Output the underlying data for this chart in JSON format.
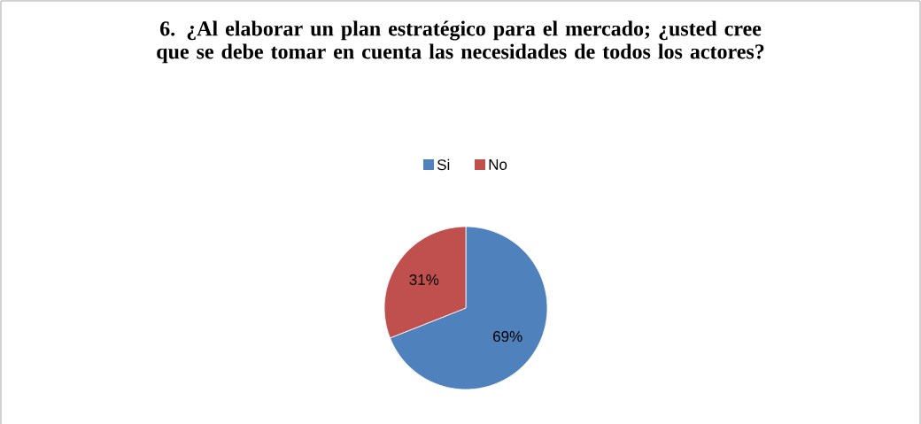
{
  "chart_data": {
    "type": "pie",
    "title": "6. ¿Al elaborar un plan estratégico para el mercado; ¿usted cree que se debe tomar en cuenta las necesidades de todos los actores?",
    "categories": [
      "Si",
      "No"
    ],
    "values": [
      69,
      31
    ],
    "colors": [
      "#4f81bd",
      "#c0504d"
    ],
    "value_labels": [
      "69%",
      "31%"
    ],
    "legend": "top"
  }
}
